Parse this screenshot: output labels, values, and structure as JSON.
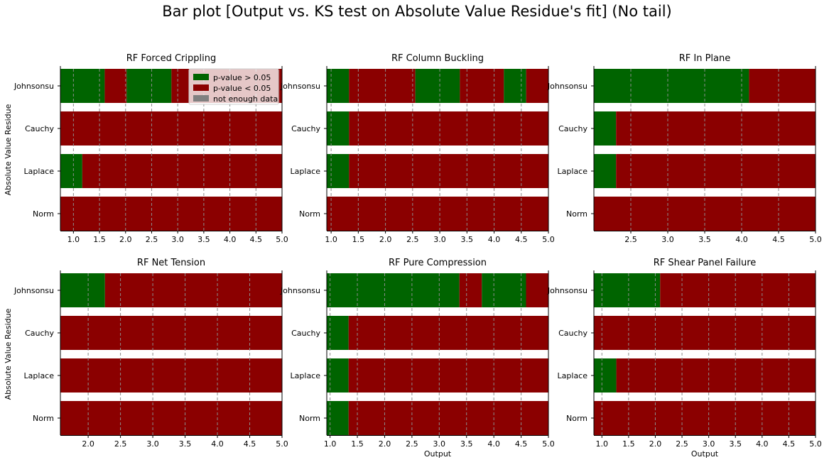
{
  "figure": {
    "title": "Bar plot [Output vs. KS test on Absolute Value Residue's fit] (No tail)"
  },
  "legend": {
    "placement": "upper-right of first panel",
    "items": [
      {
        "label": "p-value > 0.05",
        "color": "#006400"
      },
      {
        "label": "p-value < 0.05",
        "color": "#8b0000"
      },
      {
        "label": "not enough data",
        "color": "#808080"
      }
    ]
  },
  "colors": {
    "pass": "#006400",
    "fail": "#8b0000",
    "nodata": "#808080",
    "grid": "#8c8c8c"
  },
  "chart_data": [
    {
      "type": "bar",
      "orientation": "horizontal",
      "stacked": true,
      "title": "RF Forced Crippling",
      "xlabel": "",
      "ylabel": "Absolute Value Residue",
      "xlim": [
        0.75,
        5.0
      ],
      "xticks": [
        1.0,
        1.5,
        2.0,
        2.5,
        3.0,
        3.5,
        4.0,
        4.5,
        5.0
      ],
      "grid": "x-dashed",
      "categories": [
        "Johnsonsu",
        "Cauchy",
        "Laplace",
        "Norm"
      ],
      "segments": {
        "Johnsonsu": [
          [
            0.75,
            1.6,
            "pass"
          ],
          [
            1.6,
            2.02,
            "fail"
          ],
          [
            2.02,
            2.88,
            "pass"
          ],
          [
            2.88,
            4.95,
            "fail"
          ],
          [
            4.95,
            5.0,
            "fail"
          ]
        ],
        "Cauchy": [
          [
            0.75,
            5.0,
            "fail"
          ]
        ],
        "Laplace": [
          [
            0.75,
            1.17,
            "pass"
          ],
          [
            1.17,
            5.0,
            "fail"
          ]
        ],
        "Norm": [
          [
            0.75,
            5.0,
            "fail"
          ]
        ]
      }
    },
    {
      "type": "bar",
      "orientation": "horizontal",
      "stacked": true,
      "title": "RF Column Buckling",
      "xlabel": "",
      "ylabel": "",
      "xlim": [
        0.92,
        5.0
      ],
      "xticks": [
        1.0,
        1.5,
        2.0,
        2.5,
        3.0,
        3.5,
        4.0,
        4.5,
        5.0
      ],
      "grid": "x-dashed",
      "categories": [
        "Johnsonsu",
        "Cauchy",
        "Laplace",
        "Norm"
      ],
      "segments": {
        "Johnsonsu": [
          [
            0.92,
            1.33,
            "pass"
          ],
          [
            1.33,
            2.55,
            "fail"
          ],
          [
            2.55,
            3.37,
            "pass"
          ],
          [
            3.37,
            4.18,
            "fail"
          ],
          [
            4.18,
            4.59,
            "pass"
          ],
          [
            4.59,
            5.0,
            "fail"
          ]
        ],
        "Cauchy": [
          [
            0.92,
            1.33,
            "pass"
          ],
          [
            1.33,
            5.0,
            "fail"
          ]
        ],
        "Laplace": [
          [
            0.92,
            1.33,
            "pass"
          ],
          [
            1.33,
            5.0,
            "fail"
          ]
        ],
        "Norm": [
          [
            0.92,
            5.0,
            "fail"
          ]
        ]
      }
    },
    {
      "type": "bar",
      "orientation": "horizontal",
      "stacked": true,
      "title": "RF In Plane",
      "xlabel": "",
      "ylabel": "",
      "xlim": [
        2.0,
        5.0
      ],
      "xticks": [
        2.5,
        3.0,
        3.5,
        4.0,
        4.5,
        5.0
      ],
      "grid": "x-dashed",
      "categories": [
        "Johnsonsu",
        "Cauchy",
        "Laplace",
        "Norm"
      ],
      "segments": {
        "Johnsonsu": [
          [
            2.0,
            4.1,
            "pass"
          ],
          [
            4.1,
            5.0,
            "fail"
          ]
        ],
        "Cauchy": [
          [
            2.0,
            2.3,
            "pass"
          ],
          [
            2.3,
            5.0,
            "fail"
          ]
        ],
        "Laplace": [
          [
            2.0,
            2.3,
            "pass"
          ],
          [
            2.3,
            5.0,
            "fail"
          ]
        ],
        "Norm": [
          [
            2.0,
            5.0,
            "fail"
          ]
        ]
      }
    },
    {
      "type": "bar",
      "orientation": "horizontal",
      "stacked": true,
      "title": "RF Net Tension",
      "xlabel": "",
      "ylabel": "Absolute Value Residue",
      "xlim": [
        1.57,
        5.0
      ],
      "xticks": [
        2.0,
        2.5,
        3.0,
        3.5,
        4.0,
        4.5,
        5.0
      ],
      "grid": "x-dashed",
      "categories": [
        "Johnsonsu",
        "Cauchy",
        "Laplace",
        "Norm"
      ],
      "segments": {
        "Johnsonsu": [
          [
            1.57,
            2.26,
            "pass"
          ],
          [
            2.26,
            5.0,
            "fail"
          ]
        ],
        "Cauchy": [
          [
            1.57,
            5.0,
            "fail"
          ]
        ],
        "Laplace": [
          [
            1.57,
            5.0,
            "fail"
          ]
        ],
        "Norm": [
          [
            1.57,
            5.0,
            "fail"
          ]
        ]
      }
    },
    {
      "type": "bar",
      "orientation": "horizontal",
      "stacked": true,
      "title": "RF Pure Compression",
      "xlabel": "Output",
      "ylabel": "",
      "xlim": [
        0.94,
        5.0
      ],
      "xticks": [
        1.0,
        1.5,
        2.0,
        2.5,
        3.0,
        3.5,
        4.0,
        4.5,
        5.0
      ],
      "grid": "x-dashed",
      "categories": [
        "Johnsonsu",
        "Cauchy",
        "Laplace",
        "Norm"
      ],
      "segments": {
        "Johnsonsu": [
          [
            0.94,
            3.37,
            "pass"
          ],
          [
            3.37,
            3.78,
            "fail"
          ],
          [
            3.78,
            4.59,
            "pass"
          ],
          [
            4.59,
            5.0,
            "fail"
          ]
        ],
        "Cauchy": [
          [
            0.94,
            1.34,
            "pass"
          ],
          [
            1.34,
            5.0,
            "fail"
          ]
        ],
        "Laplace": [
          [
            0.94,
            1.34,
            "pass"
          ],
          [
            1.34,
            5.0,
            "fail"
          ]
        ],
        "Norm": [
          [
            0.94,
            1.34,
            "pass"
          ],
          [
            1.34,
            5.0,
            "fail"
          ]
        ]
      }
    },
    {
      "type": "bar",
      "orientation": "horizontal",
      "stacked": true,
      "title": "RF Shear Panel Failure",
      "xlabel": "Output",
      "ylabel": "",
      "xlim": [
        0.85,
        5.0
      ],
      "xticks": [
        1.0,
        1.5,
        2.0,
        2.5,
        3.0,
        3.5,
        4.0,
        4.5,
        5.0
      ],
      "grid": "x-dashed",
      "categories": [
        "Johnsonsu",
        "Cauchy",
        "Laplace",
        "Norm"
      ],
      "segments": {
        "Johnsonsu": [
          [
            0.85,
            2.09,
            "pass"
          ],
          [
            2.09,
            5.0,
            "fail"
          ]
        ],
        "Cauchy": [
          [
            0.85,
            5.0,
            "fail"
          ]
        ],
        "Laplace": [
          [
            0.85,
            1.27,
            "pass"
          ],
          [
            1.27,
            5.0,
            "fail"
          ]
        ],
        "Norm": [
          [
            0.85,
            5.0,
            "fail"
          ]
        ]
      }
    }
  ]
}
